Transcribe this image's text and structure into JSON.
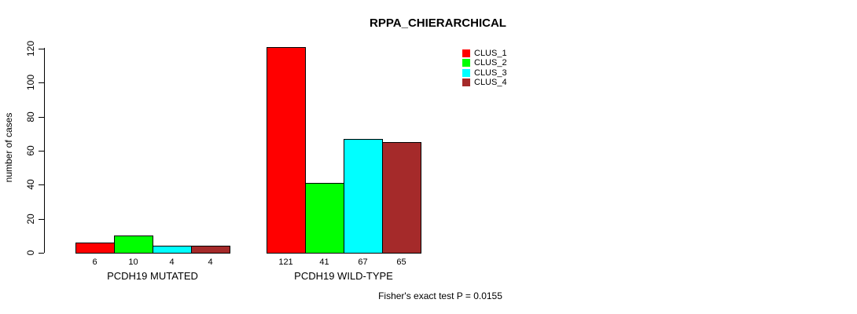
{
  "chart_data": {
    "type": "bar",
    "title": "RPPA_CHIERARCHICAL",
    "ylabel": "number of cases",
    "xlabel": "",
    "ylim": [
      0,
      120
    ],
    "yticks": [
      0,
      20,
      40,
      60,
      80,
      100,
      120
    ],
    "grid": false,
    "legend_position": "top-right",
    "bar_border_color": "#000000",
    "categories": [
      "PCDH19 MUTATED",
      "PCDH19 WILD-TYPE"
    ],
    "series": [
      {
        "name": "CLUS_1",
        "color": "#FF0000",
        "values": [
          6,
          121
        ]
      },
      {
        "name": "CLUS_2",
        "color": "#00FF00",
        "values": [
          10,
          41
        ]
      },
      {
        "name": "CLUS_3",
        "color": "#00FFFF",
        "values": [
          4,
          67
        ]
      },
      {
        "name": "CLUS_4",
        "color": "#A52A2A",
        "values": [
          4,
          65
        ]
      }
    ],
    "groups": [
      {
        "label": "PCDH19 MUTATED",
        "values": [
          6,
          10,
          4,
          4
        ],
        "value_labels": [
          "6",
          "10",
          "4",
          "4"
        ]
      },
      {
        "label": "PCDH19 WILD-TYPE",
        "values": [
          121,
          41,
          67,
          65
        ],
        "value_labels": [
          "121",
          "41",
          "67",
          "65"
        ]
      }
    ],
    "annotation": "Fisher's exact test P = 0.0155"
  }
}
